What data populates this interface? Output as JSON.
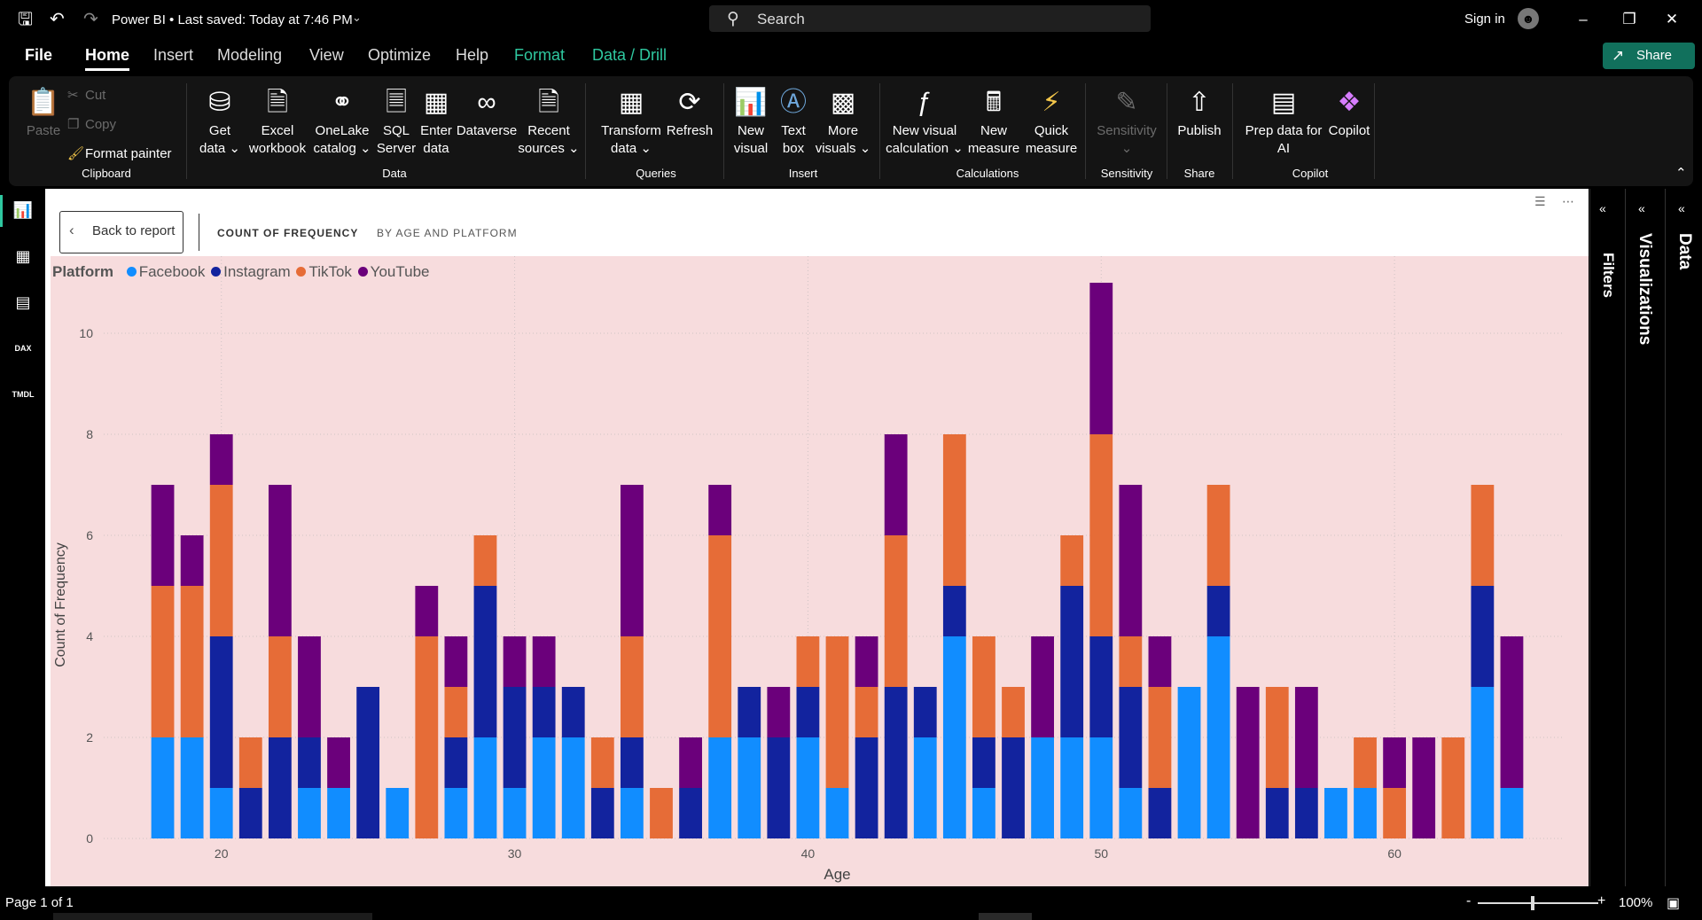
{
  "titlebar": {
    "app_title": "Power BI",
    "save_status": "Last saved: Today at 7:46 PM",
    "search_placeholder": "Search",
    "sign_in": "Sign in",
    "icons": [
      "save-icon",
      "undo-icon",
      "redo-icon",
      "chevron-down-icon",
      "search-icon",
      "user-icon",
      "minimize-icon",
      "restore-icon",
      "close-icon"
    ]
  },
  "tabs": [
    {
      "label": "File"
    },
    {
      "label": "Home",
      "active": true
    },
    {
      "label": "Insert"
    },
    {
      "label": "Modeling"
    },
    {
      "label": "View"
    },
    {
      "label": "Optimize"
    },
    {
      "label": "Help"
    },
    {
      "label": "Format",
      "contextual": true
    },
    {
      "label": "Data / Drill",
      "contextual": true
    }
  ],
  "share_label": "Share",
  "ribbon": {
    "clipboard": {
      "paste": "Paste",
      "cut": "Cut",
      "copy": "Copy",
      "format_painter": "Format painter",
      "group": "Clipboard"
    },
    "data": {
      "get_data_1": "Get",
      "get_data_2": "data",
      "excel_1": "Excel",
      "excel_2": "workbook",
      "onelake_1": "OneLake",
      "onelake_2": "catalog",
      "sql_1": "SQL",
      "sql_2": "Server",
      "enter_1": "Enter",
      "enter_2": "data",
      "dataverse": "Dataverse",
      "recent_1": "Recent",
      "recent_2": "sources",
      "group": "Data"
    },
    "queries": {
      "transform_1": "Transform",
      "transform_2": "data",
      "refresh": "Refresh",
      "group": "Queries"
    },
    "insert": {
      "new_visual_1": "New",
      "new_visual_2": "visual",
      "text_box_1": "Text",
      "text_box_2": "box",
      "more_visuals_1": "More",
      "more_visuals_2": "visuals",
      "group": "Insert"
    },
    "calculations": {
      "nvc_1": "New visual",
      "nvc_2": "calculation",
      "nm_1": "New",
      "nm_2": "measure",
      "qm_1": "Quick",
      "qm_2": "measure",
      "group": "Calculations"
    },
    "sensitivity": {
      "label": "Sensitivity",
      "group": "Sensitivity"
    },
    "share": {
      "publish": "Publish",
      "group": "Share"
    },
    "copilot": {
      "prep_1": "Prep data for",
      "prep_2": "AI",
      "copilot": "Copilot",
      "group": "Copilot"
    }
  },
  "focus_mode": {
    "back_label": "Back to report",
    "title_main": "COUNT OF FREQUENCY",
    "title_sub": "BY AGE AND PLATFORM"
  },
  "panes": {
    "filters": "Filters",
    "visualizations": "Visualizations",
    "data": "Data"
  },
  "status": {
    "page": "Page 1 of 1",
    "zoom": "100%"
  },
  "chart_data": {
    "type": "bar",
    "stacked": true,
    "xlabel": "Age",
    "ylabel": "Count of Frequency",
    "legend_title": "Platform",
    "legend_position": "top-left",
    "ylim": [
      0,
      11
    ],
    "yticks": [
      0,
      2,
      4,
      6,
      8,
      10
    ],
    "xticks": [
      20,
      30,
      40,
      50,
      60
    ],
    "grid": true,
    "x": [
      18,
      19,
      20,
      21,
      22,
      23,
      24,
      25,
      26,
      27,
      28,
      29,
      30,
      31,
      32,
      33,
      34,
      35,
      36,
      37,
      38,
      39,
      40,
      41,
      42,
      43,
      44,
      45,
      46,
      47,
      48,
      49,
      50,
      51,
      52,
      53,
      54,
      55,
      56,
      57,
      58,
      59,
      60,
      61,
      62,
      63,
      64
    ],
    "series": [
      {
        "name": "Facebook",
        "color": "#118dff",
        "values": [
          2,
          2,
          1,
          0,
          0,
          1,
          1,
          0,
          1,
          0,
          1,
          2,
          1,
          2,
          2,
          0,
          1,
          0,
          0,
          2,
          2,
          0,
          2,
          1,
          0,
          0,
          2,
          4,
          1,
          0,
          2,
          2,
          2,
          1,
          0,
          3,
          4,
          0,
          0,
          0,
          1,
          1,
          0,
          0,
          0,
          3,
          1
        ]
      },
      {
        "name": "Instagram",
        "color": "#12239e",
        "values": [
          0,
          0,
          3,
          1,
          2,
          1,
          0,
          3,
          0,
          0,
          1,
          3,
          2,
          1,
          1,
          1,
          1,
          0,
          1,
          0,
          1,
          2,
          1,
          0,
          2,
          3,
          1,
          1,
          1,
          2,
          0,
          3,
          2,
          2,
          1,
          0,
          1,
          0,
          1,
          1,
          0,
          0,
          0,
          0,
          0,
          2,
          0
        ]
      },
      {
        "name": "TikTok",
        "color": "#e66c37",
        "values": [
          3,
          3,
          3,
          1,
          2,
          0,
          0,
          0,
          0,
          4,
          1,
          1,
          0,
          0,
          0,
          1,
          2,
          1,
          0,
          4,
          0,
          0,
          1,
          3,
          1,
          3,
          0,
          3,
          2,
          1,
          0,
          1,
          4,
          1,
          2,
          0,
          2,
          0,
          2,
          0,
          0,
          1,
          1,
          0,
          2,
          2,
          0
        ]
      },
      {
        "name": "YouTube",
        "color": "#6b007b",
        "values": [
          2,
          1,
          1,
          0,
          3,
          2,
          1,
          0,
          0,
          1,
          1,
          0,
          1,
          1,
          0,
          0,
          3,
          0,
          1,
          1,
          0,
          1,
          0,
          0,
          1,
          2,
          0,
          0,
          0,
          0,
          2,
          0,
          3,
          3,
          1,
          0,
          0,
          3,
          0,
          2,
          0,
          0,
          1,
          2,
          0,
          0,
          3
        ]
      }
    ]
  }
}
